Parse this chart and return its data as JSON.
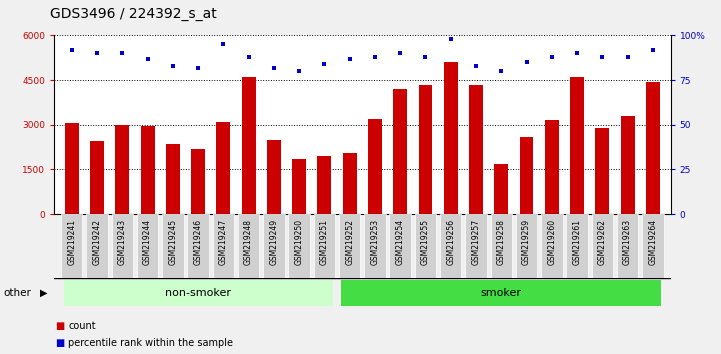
{
  "title": "GDS3496 / 224392_s_at",
  "categories": [
    "GSM219241",
    "GSM219242",
    "GSM219243",
    "GSM219244",
    "GSM219245",
    "GSM219246",
    "GSM219247",
    "GSM219248",
    "GSM219249",
    "GSM219250",
    "GSM219251",
    "GSM219252",
    "GSM219253",
    "GSM219254",
    "GSM219255",
    "GSM219256",
    "GSM219257",
    "GSM219258",
    "GSM219259",
    "GSM219260",
    "GSM219261",
    "GSM219262",
    "GSM219263",
    "GSM219264"
  ],
  "bar_values": [
    3050,
    2450,
    3000,
    2950,
    2350,
    2200,
    3100,
    4600,
    2500,
    1850,
    1950,
    2050,
    3200,
    4200,
    4350,
    5100,
    4350,
    1700,
    2600,
    3150,
    4600,
    2900,
    3300,
    4450
  ],
  "dot_values": [
    92,
    90,
    90,
    87,
    83,
    82,
    95,
    88,
    82,
    80,
    84,
    87,
    88,
    90,
    88,
    98,
    83,
    80,
    85,
    88,
    90,
    88,
    88,
    92
  ],
  "bar_color": "#cc0000",
  "dot_color": "#0000cc",
  "ylim_left": [
    0,
    6000
  ],
  "ylim_right": [
    0,
    100
  ],
  "yticks_left": [
    0,
    1500,
    3000,
    4500,
    6000
  ],
  "yticks_right": [
    0,
    25,
    50,
    75,
    100
  ],
  "ytick_labels_left": [
    "0",
    "1500",
    "3000",
    "4500",
    "6000"
  ],
  "ytick_labels_right": [
    "0",
    "25",
    "50",
    "75",
    "100%"
  ],
  "non_smoker_count": 11,
  "smoker_count": 13,
  "group_labels": [
    "non-smoker",
    "smoker"
  ],
  "group_color_ns": "#ccffcc",
  "group_color_sm": "#44dd44",
  "other_label": "other",
  "legend_items": [
    {
      "label": "count",
      "color": "#cc0000"
    },
    {
      "label": "percentile rank within the sample",
      "color": "#0000cc"
    }
  ],
  "background_color": "#f0f0f0",
  "tick_label_bg": "#d0d0d0",
  "title_fontsize": 10,
  "tick_fontsize": 6.5,
  "bar_width": 0.55
}
